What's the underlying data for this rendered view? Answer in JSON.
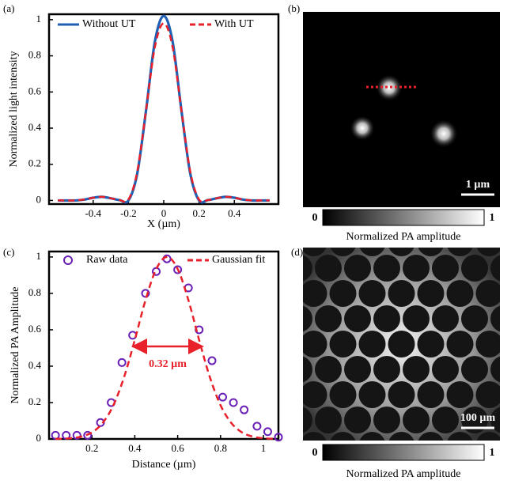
{
  "chart_data": [
    {
      "type": "line",
      "panel": "(a)",
      "x_label": "X (µm)",
      "y_label": "Normalized light intensity",
      "x": [
        -0.6,
        -0.55,
        -0.5,
        -0.45,
        -0.4,
        -0.35,
        -0.3,
        -0.25,
        -0.2,
        -0.15,
        -0.1,
        -0.05,
        0,
        0.05,
        0.1,
        0.15,
        0.2,
        0.25,
        0.3,
        0.35,
        0.4,
        0.45,
        0.5,
        0.55,
        0.6
      ],
      "series": [
        {
          "name": "Without UT",
          "color": "#1f5fb4",
          "dash": false,
          "values": [
            0,
            0,
            0,
            0.005,
            0.015,
            0.02,
            0.012,
            0.002,
            0,
            0.15,
            0.5,
            0.88,
            1.02,
            0.88,
            0.5,
            0.15,
            0,
            0.002,
            0.012,
            0.02,
            0.015,
            0.005,
            0,
            0,
            0
          ]
        },
        {
          "name": "With UT",
          "color": "#e8202a",
          "dash": true,
          "values": [
            0,
            0,
            0,
            0.005,
            0.015,
            0.02,
            0.012,
            0.002,
            0.005,
            0.16,
            0.5,
            0.85,
            0.98,
            0.85,
            0.5,
            0.16,
            0.005,
            0.002,
            0.012,
            0.02,
            0.015,
            0.005,
            0,
            0,
            0
          ]
        }
      ],
      "xlim": [
        -0.65,
        0.65
      ],
      "ylim": [
        -0.02,
        1.03
      ],
      "xticks": [
        -0.4,
        -0.2,
        0,
        0.2,
        0.4
      ],
      "yticks": [
        0,
        0.2,
        0.4,
        0.6,
        0.8,
        1
      ]
    },
    {
      "type": "image",
      "panel": "(b)",
      "scale_bar": "1 µm",
      "colorbar_ticks": [
        0,
        1
      ],
      "colorbar_label": "Normalized PA amplitude"
    },
    {
      "type": "scatter",
      "panel": "(c)",
      "x_label": "Distance (µm)",
      "y_label": "Normalized PA Amplitude",
      "series": [
        {
          "name": "Raw data",
          "color": "#6a1fb5",
          "mode": "markers",
          "x": [
            0.03,
            0.08,
            0.13,
            0.18,
            0.24,
            0.29,
            0.34,
            0.39,
            0.45,
            0.5,
            0.55,
            0.6,
            0.65,
            0.7,
            0.76,
            0.81,
            0.86,
            0.91,
            0.97,
            1.02,
            1.07
          ],
          "values": [
            0.02,
            0.02,
            0.02,
            0.02,
            0.09,
            0.2,
            0.42,
            0.57,
            0.8,
            0.92,
            0.99,
            0.93,
            0.83,
            0.6,
            0.43,
            0.23,
            0.2,
            0.16,
            0.07,
            0.04,
            0.01
          ]
        },
        {
          "name": "Gaussian fit",
          "color": "#e8202a",
          "mode": "line",
          "x": [
            0.03,
            0.05,
            0.1,
            0.15,
            0.2,
            0.25,
            0.3,
            0.35,
            0.4,
            0.45,
            0.5,
            0.55,
            0.6,
            0.65,
            0.7,
            0.75,
            0.8,
            0.85,
            0.9,
            0.95,
            1.0,
            1.05
          ],
          "values": [
            0.001,
            0.001,
            0.004,
            0.013,
            0.036,
            0.088,
            0.185,
            0.34,
            0.544,
            0.763,
            0.934,
            1,
            0.934,
            0.763,
            0.544,
            0.34,
            0.185,
            0.088,
            0.036,
            0.013,
            0.004,
            0.001
          ]
        }
      ],
      "annotation": "0.32 µm",
      "xlim": [
        0,
        1.07
      ],
      "ylim": [
        0,
        1.03
      ],
      "xticks": [
        0.2,
        0.4,
        0.6,
        0.8,
        1
      ],
      "yticks": [
        0,
        0.2,
        0.4,
        0.6,
        0.8,
        1
      ]
    },
    {
      "type": "image",
      "panel": "(d)",
      "scale_bar": "100 µm",
      "colorbar_ticks": [
        0,
        1
      ],
      "colorbar_label": "Normalized PA amplitude"
    }
  ]
}
